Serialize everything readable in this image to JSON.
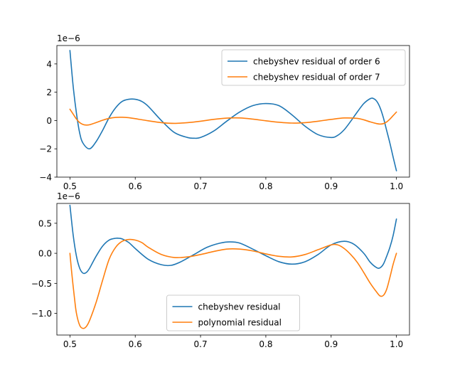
{
  "chart_data": [
    {
      "type": "line",
      "offset_text": "1e−6",
      "xlim": [
        0.48,
        1.02
      ],
      "ylim": [
        -4.0,
        5.3
      ],
      "xticks": [
        0.5,
        0.6,
        0.7,
        0.8,
        0.9,
        1.0
      ],
      "xtick_labels": [
        "0.5",
        "0.6",
        "0.7",
        "0.8",
        "0.9",
        "1.0"
      ],
      "yticks": [
        -4,
        -2,
        0,
        2,
        4
      ],
      "ytick_labels": [
        "−4",
        "−2",
        "0",
        "2",
        "4"
      ],
      "legend_position": "upper right",
      "series": [
        {
          "name": "chebyshev residual of order 6",
          "color": "#1f77b4",
          "x": [
            0.5,
            0.505,
            0.51,
            0.515,
            0.52,
            0.53,
            0.54,
            0.55,
            0.56,
            0.57,
            0.58,
            0.59,
            0.6,
            0.61,
            0.62,
            0.64,
            0.66,
            0.68,
            0.69,
            0.7,
            0.72,
            0.74,
            0.76,
            0.78,
            0.8,
            0.82,
            0.84,
            0.86,
            0.88,
            0.9,
            0.91,
            0.92,
            0.93,
            0.94,
            0.95,
            0.96,
            0.965,
            0.97,
            0.975,
            0.98,
            0.985,
            0.99,
            0.995,
            1.0
          ],
          "y": [
            4.95,
            2.4,
            0.5,
            -0.9,
            -1.6,
            -2.0,
            -1.5,
            -0.7,
            0.2,
            0.9,
            1.35,
            1.5,
            1.5,
            1.35,
            1.0,
            0.0,
            -0.85,
            -1.2,
            -1.25,
            -1.2,
            -0.75,
            -0.05,
            0.6,
            1.05,
            1.2,
            1.05,
            0.4,
            -0.4,
            -1.0,
            -1.2,
            -1.05,
            -0.65,
            -0.05,
            0.6,
            1.2,
            1.55,
            1.55,
            1.35,
            0.9,
            0.2,
            -0.7,
            -1.6,
            -2.6,
            -3.55
          ]
        },
        {
          "name": "chebyshev residual of order 7",
          "color": "#ff7f0e",
          "x": [
            0.5,
            0.505,
            0.51,
            0.515,
            0.52,
            0.525,
            0.53,
            0.54,
            0.55,
            0.56,
            0.57,
            0.58,
            0.59,
            0.6,
            0.62,
            0.64,
            0.66,
            0.68,
            0.7,
            0.72,
            0.74,
            0.76,
            0.78,
            0.8,
            0.82,
            0.84,
            0.86,
            0.88,
            0.9,
            0.92,
            0.94,
            0.95,
            0.96,
            0.97,
            0.975,
            0.98,
            0.985,
            0.99,
            0.995,
            1.0
          ],
          "y": [
            0.8,
            0.45,
            0.1,
            -0.15,
            -0.28,
            -0.32,
            -0.3,
            -0.15,
            0.02,
            0.15,
            0.22,
            0.23,
            0.2,
            0.13,
            -0.02,
            -0.15,
            -0.2,
            -0.15,
            -0.05,
            0.08,
            0.17,
            0.18,
            0.1,
            -0.02,
            -0.12,
            -0.18,
            -0.15,
            -0.05,
            0.08,
            0.18,
            0.15,
            0.05,
            -0.1,
            -0.22,
            -0.25,
            -0.22,
            -0.1,
            0.1,
            0.35,
            0.6
          ]
        }
      ]
    },
    {
      "type": "line",
      "offset_text": "1e−6",
      "xlim": [
        0.48,
        1.02
      ],
      "ylim": [
        -1.36,
        0.83
      ],
      "xticks": [
        0.5,
        0.6,
        0.7,
        0.8,
        0.9,
        1.0
      ],
      "xtick_labels": [
        "0.5",
        "0.6",
        "0.7",
        "0.8",
        "0.9",
        "1.0"
      ],
      "yticks": [
        -1.0,
        -0.5,
        0.0,
        0.5
      ],
      "ytick_labels": [
        "−1.0",
        "−0.5",
        "0.0",
        "0.5"
      ],
      "legend_position": "lower center",
      "series": [
        {
          "name": "chebyshev residual",
          "color": "#1f77b4",
          "x": [
            0.5,
            0.505,
            0.51,
            0.515,
            0.52,
            0.525,
            0.53,
            0.54,
            0.55,
            0.56,
            0.57,
            0.575,
            0.58,
            0.59,
            0.6,
            0.62,
            0.64,
            0.655,
            0.67,
            0.69,
            0.71,
            0.73,
            0.745,
            0.76,
            0.78,
            0.8,
            0.82,
            0.84,
            0.86,
            0.88,
            0.9,
            0.92,
            0.935,
            0.95,
            0.96,
            0.97,
            0.975,
            0.98,
            0.985,
            0.99,
            0.995,
            1.0
          ],
          "y": [
            0.8,
            0.3,
            -0.05,
            -0.25,
            -0.33,
            -0.32,
            -0.25,
            -0.05,
            0.12,
            0.22,
            0.25,
            0.25,
            0.24,
            0.18,
            0.08,
            -0.1,
            -0.19,
            -0.2,
            -0.14,
            -0.02,
            0.1,
            0.17,
            0.19,
            0.17,
            0.07,
            -0.04,
            -0.14,
            -0.18,
            -0.14,
            -0.02,
            0.14,
            0.2,
            0.15,
            0.0,
            -0.15,
            -0.24,
            -0.24,
            -0.18,
            -0.05,
            0.1,
            0.3,
            0.57
          ]
        },
        {
          "name": "polynomial residual",
          "color": "#ff7f0e",
          "x": [
            0.5,
            0.503,
            0.507,
            0.51,
            0.515,
            0.52,
            0.525,
            0.53,
            0.54,
            0.55,
            0.56,
            0.57,
            0.58,
            0.59,
            0.6,
            0.61,
            0.62,
            0.64,
            0.66,
            0.68,
            0.7,
            0.72,
            0.74,
            0.76,
            0.78,
            0.8,
            0.82,
            0.84,
            0.86,
            0.88,
            0.9,
            0.91,
            0.92,
            0.93,
            0.94,
            0.95,
            0.96,
            0.97,
            0.975,
            0.98,
            0.985,
            0.99,
            0.995,
            1.0
          ],
          "y": [
            0.0,
            -0.35,
            -0.75,
            -1.0,
            -1.2,
            -1.25,
            -1.22,
            -1.12,
            -0.82,
            -0.45,
            -0.1,
            0.1,
            0.2,
            0.23,
            0.22,
            0.18,
            0.1,
            -0.02,
            -0.07,
            -0.06,
            -0.02,
            0.03,
            0.07,
            0.07,
            0.04,
            -0.01,
            -0.05,
            -0.06,
            -0.02,
            0.06,
            0.14,
            0.14,
            0.08,
            -0.02,
            -0.15,
            -0.32,
            -0.5,
            -0.65,
            -0.71,
            -0.7,
            -0.6,
            -0.4,
            -0.18,
            0.0
          ]
        }
      ]
    }
  ]
}
